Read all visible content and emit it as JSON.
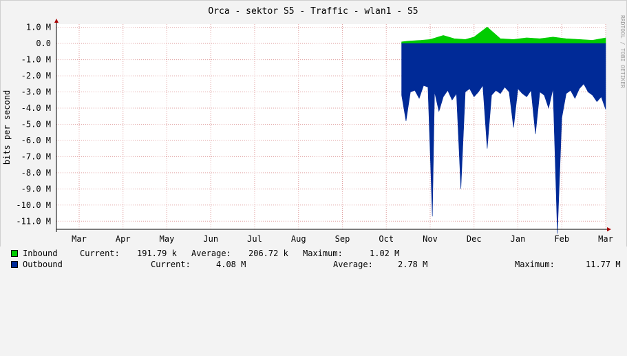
{
  "chart_data": {
    "type": "area",
    "title": "Orca - sektor S5 - Traffic - wlan1 - S5",
    "ylabel": "bits per second",
    "watermark": "RRDTOOL / TOBI OETIKER",
    "ylim": [
      -11.5,
      1.2
    ],
    "y_unit": "M",
    "y_ticks": [
      {
        "value": 1,
        "label": "1.0 M"
      },
      {
        "value": 0,
        "label": "0.0"
      },
      {
        "value": -1,
        "label": "-1.0 M"
      },
      {
        "value": -2,
        "label": "-2.0 M"
      },
      {
        "value": -3,
        "label": "-3.0 M"
      },
      {
        "value": -4,
        "label": "-4.0 M"
      },
      {
        "value": -5,
        "label": "-5.0 M"
      },
      {
        "value": -6,
        "label": "-6.0 M"
      },
      {
        "value": -7,
        "label": "-7.0 M"
      },
      {
        "value": -8,
        "label": "-8.0 M"
      },
      {
        "value": -9,
        "label": "-9.0 M"
      },
      {
        "value": -10,
        "label": "-10.0 M"
      },
      {
        "value": -11,
        "label": "-11.0 M"
      }
    ],
    "x_ticks": [
      "Mar",
      "Apr",
      "May",
      "Jun",
      "Jul",
      "Aug",
      "Sep",
      "Oct",
      "Nov",
      "Dec",
      "Jan",
      "Feb",
      "Mar"
    ],
    "grid": true,
    "series": [
      {
        "name": "Inbound",
        "color": "#00cc00",
        "x": [
          7.35,
          7.5,
          7.8,
          8.0,
          8.3,
          8.55,
          8.8,
          9.0,
          9.3,
          9.6,
          9.9,
          10.2,
          10.5,
          10.8,
          11.1,
          11.4,
          11.7,
          12.0
        ],
        "values": [
          0.1,
          0.15,
          0.2,
          0.25,
          0.5,
          0.3,
          0.25,
          0.4,
          1.02,
          0.3,
          0.25,
          0.35,
          0.3,
          0.4,
          0.3,
          0.25,
          0.2,
          0.35
        ]
      },
      {
        "name": "Outbound",
        "color": "#002a97",
        "x": [
          7.35,
          7.45,
          7.55,
          7.65,
          7.75,
          7.85,
          7.95,
          8.05,
          8.1,
          8.2,
          8.3,
          8.4,
          8.5,
          8.6,
          8.7,
          8.8,
          8.9,
          9.0,
          9.1,
          9.2,
          9.3,
          9.4,
          9.5,
          9.6,
          9.7,
          9.8,
          9.9,
          10.0,
          10.1,
          10.2,
          10.3,
          10.4,
          10.5,
          10.6,
          10.7,
          10.8,
          10.9,
          11.0,
          11.1,
          11.2,
          11.3,
          11.4,
          11.5,
          11.6,
          11.7,
          11.8,
          11.9,
          12.0
        ],
        "values": [
          -3.2,
          -4.8,
          -3.0,
          -2.9,
          -3.4,
          -2.6,
          -2.7,
          -10.7,
          -3.0,
          -4.2,
          -3.3,
          -2.9,
          -3.5,
          -3.1,
          -9.0,
          -3.0,
          -2.8,
          -3.3,
          -3.0,
          -2.6,
          -6.5,
          -3.2,
          -2.9,
          -3.1,
          -2.7,
          -3.0,
          -5.2,
          -2.8,
          -3.1,
          -3.3,
          -2.9,
          -5.6,
          -3.0,
          -3.2,
          -4.0,
          -2.8,
          -11.77,
          -4.6,
          -3.1,
          -2.9,
          -3.4,
          -2.8,
          -2.5,
          -3.0,
          -3.2,
          -3.6,
          -3.3,
          -4.08
        ]
      }
    ]
  },
  "legend": [
    {
      "name": "Inbound",
      "color": "#00cc00",
      "current_label": "Current:",
      "current": "191.79 k",
      "average_label": "Average:",
      "average": "206.72 k",
      "maximum_label": "Maximum:",
      "maximum": "1.02 M"
    },
    {
      "name": "Outbound",
      "color": "#002a97",
      "current_label": "Current:",
      "current": "4.08 M",
      "average_label": "Average:",
      "average": "2.78 M",
      "maximum_label": "Maximum:",
      "maximum": "11.77 M"
    }
  ]
}
